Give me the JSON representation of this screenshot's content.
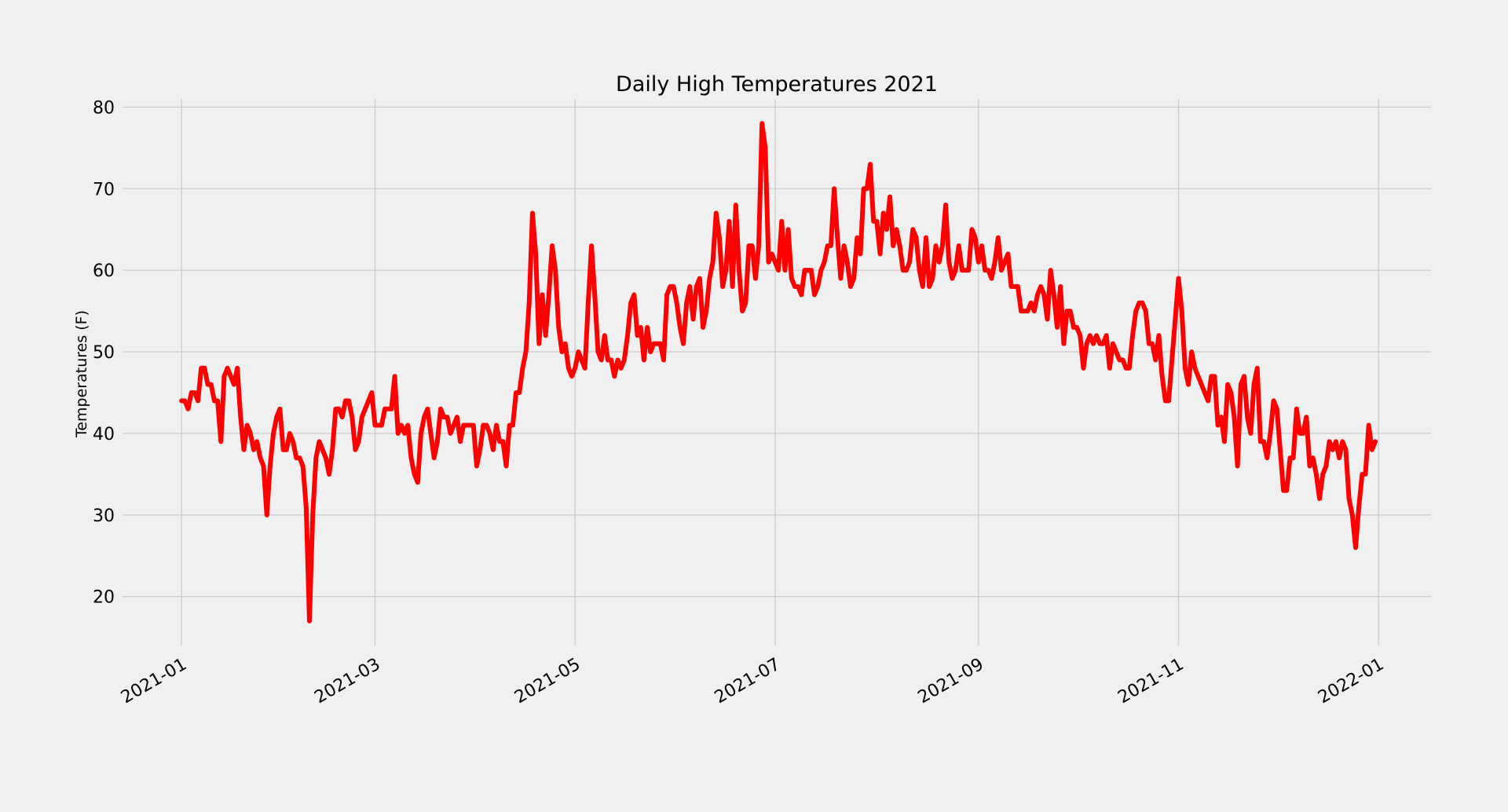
{
  "chart_data": {
    "type": "line",
    "title": "Daily High Temperatures 2021",
    "xlabel": "",
    "ylabel": "Temperatures (F)",
    "x_start": "2021-01-01",
    "x_end": "2021-12-31",
    "xlim": [
      "2020-12-14",
      "2022-01-17"
    ],
    "ylim": [
      14.0,
      81.0
    ],
    "grid": true,
    "x_ticks": [
      "2021-01",
      "2021-03",
      "2021-05",
      "2021-07",
      "2021-09",
      "2021-11",
      "2022-01"
    ],
    "y_ticks": [
      20,
      30,
      40,
      50,
      60,
      70,
      80
    ],
    "colors": {
      "background": "#f0f0f0",
      "grid": "#cbcbcb",
      "line": "#ff0000"
    },
    "series": [
      {
        "color": "#ff0000",
        "values": [
          44,
          44,
          43,
          45,
          45,
          44,
          48,
          48,
          46,
          46,
          44,
          44,
          39,
          47,
          48,
          47,
          46,
          48,
          42,
          38,
          41,
          40,
          38,
          39,
          37,
          36,
          30,
          36,
          40,
          42,
          43,
          38,
          38,
          40,
          39,
          37,
          37,
          36,
          31,
          17,
          30,
          37,
          39,
          38,
          37,
          35,
          38,
          43,
          43,
          42,
          44,
          44,
          42,
          38,
          39,
          42,
          43,
          44,
          45,
          41,
          41,
          41,
          43,
          43,
          43,
          47,
          40,
          41,
          40,
          41,
          37,
          35,
          34,
          40,
          42,
          43,
          40,
          37,
          39,
          43,
          42,
          42,
          40,
          41,
          42,
          39,
          41,
          41,
          41,
          41,
          36,
          38,
          41,
          41,
          40,
          38,
          41,
          39,
          39,
          36,
          41,
          41,
          45,
          45,
          48,
          50,
          56,
          67,
          62,
          51,
          57,
          52,
          57,
          63,
          60,
          53,
          50,
          51,
          48,
          47,
          48,
          50,
          49,
          48,
          56,
          63,
          57,
          50,
          49,
          52,
          49,
          49,
          47,
          49,
          48,
          49,
          52,
          56,
          57,
          52,
          53,
          49,
          53,
          50,
          51,
          51,
          51,
          49,
          57,
          58,
          58,
          56,
          53,
          51,
          56,
          58,
          54,
          58,
          59,
          53,
          55,
          59,
          61,
          67,
          64,
          58,
          60,
          66,
          58,
          68,
          60,
          55,
          56,
          63,
          63,
          59,
          63,
          78,
          75,
          61,
          62,
          61,
          60,
          66,
          60,
          65,
          59,
          58,
          58,
          57,
          60,
          60,
          60,
          57,
          58,
          60,
          61,
          63,
          63,
          70,
          64,
          59,
          63,
          61,
          58,
          59,
          64,
          62,
          70,
          70,
          73,
          66,
          66,
          62,
          67,
          65,
          69,
          63,
          65,
          63,
          60,
          60,
          61,
          65,
          64,
          60,
          58,
          64,
          58,
          59,
          63,
          61,
          63,
          68,
          61,
          59,
          60,
          63,
          60,
          60,
          60,
          65,
          64,
          61,
          63,
          60,
          60,
          59,
          61,
          64,
          60,
          61,
          62,
          58,
          58,
          58,
          55,
          55,
          55,
          56,
          55,
          57,
          58,
          57,
          54,
          60,
          57,
          53,
          58,
          51,
          55,
          55,
          53,
          53,
          52,
          48,
          51,
          52,
          51,
          52,
          51,
          51,
          52,
          48,
          51,
          50,
          49,
          49,
          48,
          48,
          52,
          55,
          56,
          56,
          55,
          51,
          51,
          49,
          52,
          47,
          44,
          44,
          49,
          54,
          59,
          55,
          48,
          46,
          50,
          48,
          47,
          46,
          45,
          44,
          47,
          47,
          41,
          42,
          39,
          46,
          45,
          42,
          36,
          46,
          47,
          42,
          40,
          46,
          48,
          39,
          39,
          37,
          40,
          44,
          43,
          38,
          33,
          33,
          37,
          37,
          43,
          40,
          40,
          42,
          36,
          37,
          35,
          32,
          35,
          36,
          39,
          38,
          39,
          37,
          39,
          38,
          32,
          30,
          26,
          31,
          35,
          35,
          41,
          38,
          39
        ]
      }
    ]
  }
}
